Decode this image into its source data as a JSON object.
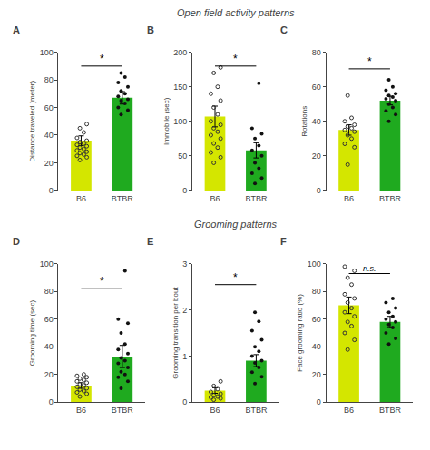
{
  "chart_data": [
    {
      "type": "bar",
      "title": "Open field activity patterns",
      "categories": [
        "B6",
        "BTBR"
      ],
      "values": [
        36,
        67
      ],
      "colors": [
        "#d4e600",
        "#1faa1f"
      ],
      "errors": [
        3.5,
        4.5
      ],
      "points": [
        [
          22,
          24,
          25,
          26,
          27,
          28,
          29,
          30,
          31,
          32,
          33,
          34,
          35,
          36,
          38,
          42,
          45,
          48
        ],
        [
          55,
          58,
          60,
          63,
          65,
          66,
          68,
          70,
          72,
          75,
          78,
          82,
          85
        ]
      ],
      "ylabel": "Distance traveled (meter)",
      "ylim": [
        0,
        100
      ],
      "yticks": [
        0,
        20,
        40,
        60,
        80,
        100
      ],
      "grid": false,
      "annotations": [
        {
          "text": "A"
        },
        {
          "text": "*",
          "y": 90
        }
      ]
    },
    {
      "type": "bar",
      "categories": [
        "B6",
        "BTBR"
      ],
      "values": [
        107,
        58
      ],
      "colors": [
        "#d4e600",
        "#1faa1f"
      ],
      "errors": [
        15,
        11
      ],
      "points": [
        [
          40,
          48,
          55,
          62,
          68,
          75,
          80,
          85,
          90,
          95,
          100,
          110,
          120,
          130,
          140,
          150,
          170,
          178
        ],
        [
          10,
          18,
          25,
          32,
          40,
          50,
          58,
          65,
          75,
          82,
          90,
          155
        ]
      ],
      "ylabel": "Immobile (sec)",
      "ylim": [
        0,
        200
      ],
      "yticks": [
        0,
        50,
        100,
        150,
        200
      ],
      "grid": false,
      "annotations": [
        {
          "text": "B"
        },
        {
          "text": "*",
          "y": 180
        }
      ]
    },
    {
      "type": "bar",
      "categories": [
        "B6",
        "BTBR"
      ],
      "values": [
        35,
        52
      ],
      "colors": [
        "#d4e600",
        "#1faa1f"
      ],
      "errors": [
        3,
        2.5
      ],
      "points": [
        [
          15,
          25,
          27,
          30,
          32,
          34,
          35,
          36,
          37,
          38,
          40,
          42,
          55
        ],
        [
          40,
          44,
          46,
          48,
          50,
          52,
          53,
          54,
          55,
          56,
          58,
          60,
          64
        ]
      ],
      "ylabel": "Rotations",
      "ylim": [
        0,
        80
      ],
      "yticks": [
        0,
        20,
        40,
        60,
        80
      ],
      "grid": false,
      "annotations": [
        {
          "text": "C"
        },
        {
          "text": "*",
          "y": 70.4
        }
      ]
    },
    {
      "type": "bar",
      "title": "Grooming patterns",
      "categories": [
        "B6",
        "BTBR"
      ],
      "values": [
        12,
        33
      ],
      "colors": [
        "#d4e600",
        "#1faa1f"
      ],
      "errors": [
        2,
        8
      ],
      "points": [
        [
          4,
          6,
          7,
          8,
          9,
          10,
          11,
          12,
          13,
          14,
          15,
          16,
          17,
          18,
          19,
          20
        ],
        [
          10,
          15,
          18,
          20,
          22,
          25,
          28,
          30,
          32,
          35,
          38,
          42,
          50,
          57,
          60,
          95
        ]
      ],
      "ylabel": "Grooming time (sec)",
      "ylim": [
        0,
        100
      ],
      "yticks": [
        0,
        20,
        40,
        60,
        80,
        100
      ],
      "grid": false,
      "annotations": [
        {
          "text": "D"
        },
        {
          "text": "*",
          "y": 82
        }
      ]
    },
    {
      "type": "bar",
      "categories": [
        "B6",
        "BTBR"
      ],
      "values": [
        0.25,
        0.9
      ],
      "colors": [
        "#d4e600",
        "#1faa1f"
      ],
      "errors": [
        0.06,
        0.13
      ],
      "points": [
        [
          0.05,
          0.08,
          0.1,
          0.12,
          0.15,
          0.18,
          0.22,
          0.28,
          0.35,
          0.45
        ],
        [
          0.4,
          0.55,
          0.65,
          0.75,
          0.85,
          0.9,
          1.0,
          1.1,
          1.2,
          1.35,
          1.55,
          1.75,
          1.95
        ]
      ],
      "ylabel": "Grooming transition per bout",
      "ylim": [
        0,
        3
      ],
      "yticks": [
        0,
        1,
        2,
        3
      ],
      "grid": false,
      "annotations": [
        {
          "text": "E"
        },
        {
          "text": "*",
          "y": 2.55
        }
      ]
    },
    {
      "type": "bar",
      "categories": [
        "B6",
        "BTBR"
      ],
      "values": [
        70,
        58
      ],
      "colors": [
        "#d4e600",
        "#1faa1f"
      ],
      "errors": [
        6,
        4
      ],
      "points": [
        [
          38,
          45,
          50,
          55,
          58,
          62,
          65,
          68,
          72,
          75,
          78,
          85,
          90,
          95,
          98
        ],
        [
          42,
          46,
          50,
          54,
          56,
          58,
          60,
          62,
          65,
          68,
          72,
          75
        ]
      ],
      "ylabel": "Face grooming ratio (%)",
      "ylim": [
        0,
        100
      ],
      "yticks": [
        0,
        20,
        40,
        60,
        80,
        100
      ],
      "grid": false,
      "annotations": [
        {
          "text": "F"
        },
        {
          "text": "n.s.",
          "y": 93
        }
      ]
    }
  ]
}
